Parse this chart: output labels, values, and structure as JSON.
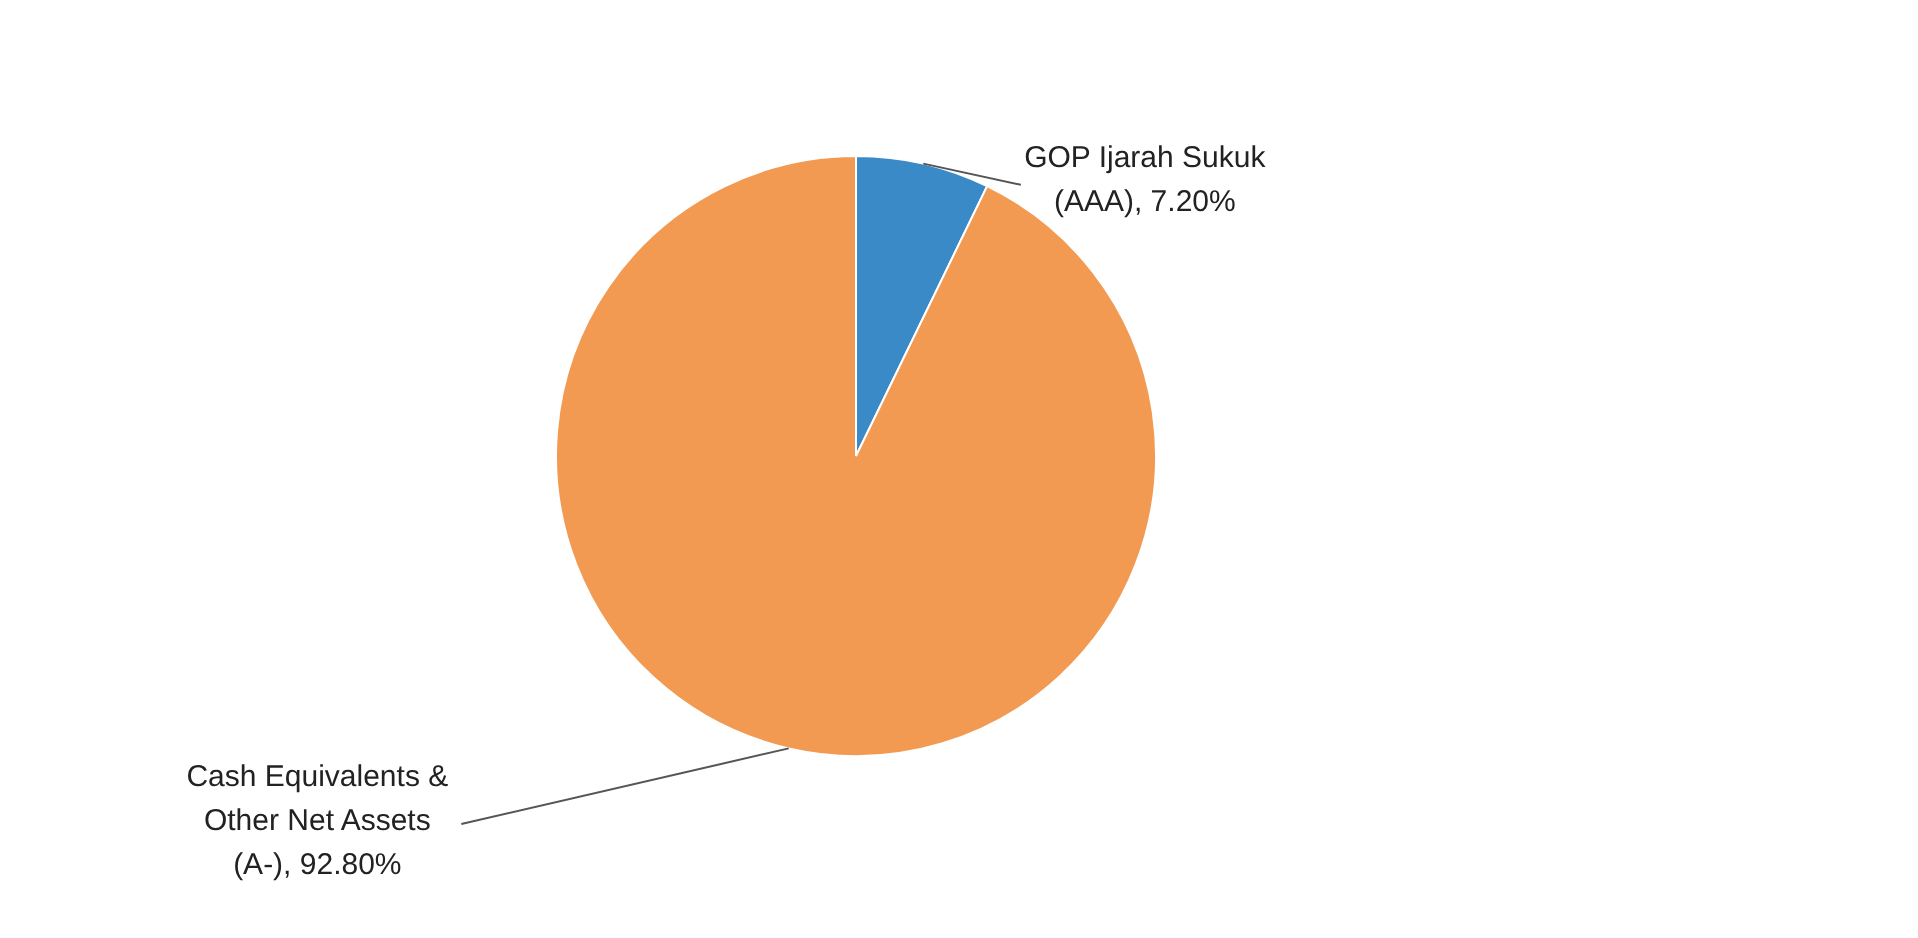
{
  "chart_data": {
    "type": "pie",
    "categories": [
      "GOP Ijarah Sukuk (AAA)",
      "Cash Equivalents & Other Net Assets (A-)"
    ],
    "values": [
      7.2,
      92.8
    ],
    "colors": [
      "#3a8ac8",
      "#f39a52"
    ],
    "value_labels": [
      "7.20%",
      "92.80%"
    ]
  }
}
